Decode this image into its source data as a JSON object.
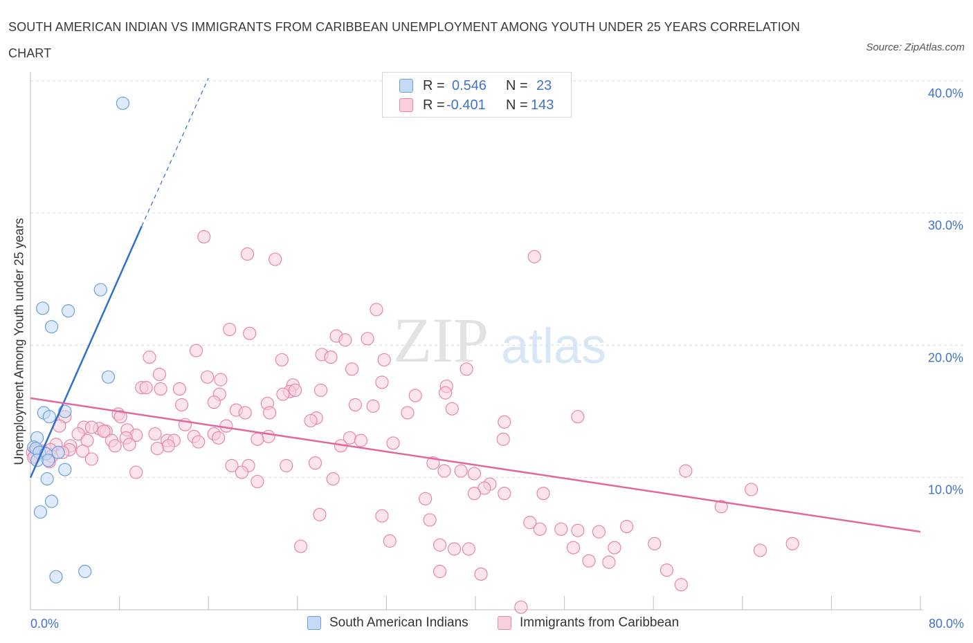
{
  "header": {
    "title": "SOUTH AMERICAN INDIAN VS IMMIGRANTS FROM CARIBBEAN UNEMPLOYMENT AMONG YOUTH UNDER 25 YEARS CORRELATION CHART",
    "source": "Source: ZipAtlas.com"
  },
  "colors": {
    "blue": "#6a9fe0",
    "blue_fill": "#c5daf6",
    "blue_line": "#2d6fcc",
    "pink": "#e985a8",
    "pink_fill": "#f8cddc",
    "pink_line": "#e0689a",
    "axis_text": "#3f73c9",
    "grid": "#d9d9d9"
  },
  "legend": {
    "r_label": "R =",
    "n_label": "N =",
    "blue_r": "0.546",
    "blue_n": "23",
    "pink_r": "-0.401",
    "pink_n": "143"
  },
  "watermark": {
    "zip": "ZIP",
    "atlas": "atlas"
  },
  "chart_data": {
    "type": "scatter",
    "title": "SOUTH AMERICAN INDIAN VS IMMIGRANTS FROM CARIBBEAN UNEMPLOYMENT AMONG YOUTH UNDER 25 YEARS CORRELATION CHART",
    "xlabel": "",
    "ylabel": "Unemployment Among Youth under 25 years",
    "xlim": [
      0,
      80
    ],
    "ylim": [
      0,
      40
    ],
    "x_tick_labels": [
      "0.0%",
      "80.0%"
    ],
    "y_ticks": [
      10,
      20,
      30,
      40
    ],
    "y_tick_labels": [
      "10.0%",
      "20.0%",
      "30.0%",
      "40.0%"
    ],
    "grid": true,
    "legend_position": "top-center",
    "series": [
      {
        "name": "South American Indians",
        "color": "#6a9fe0",
        "r": 0.546,
        "n": 23,
        "trend": {
          "x": [
            0,
            10
          ],
          "y": [
            10.0,
            29.0
          ],
          "dashed_to": [
            16,
            40.2
          ]
        },
        "points": [
          [
            8.3,
            38.3
          ],
          [
            6.3,
            24.2
          ],
          [
            1.1,
            22.8
          ],
          [
            3.4,
            22.6
          ],
          [
            1.9,
            21.4
          ],
          [
            7.0,
            17.6
          ],
          [
            1.2,
            14.9
          ],
          [
            3.1,
            15.0
          ],
          [
            1.7,
            14.6
          ],
          [
            0.6,
            13.0
          ],
          [
            0.3,
            12.3
          ],
          [
            0.5,
            12.2
          ],
          [
            0.8,
            11.9
          ],
          [
            1.4,
            11.8
          ],
          [
            2.5,
            11.9
          ],
          [
            0.6,
            11.3
          ],
          [
            1.6,
            11.3
          ],
          [
            3.1,
            10.6
          ],
          [
            1.5,
            9.9
          ],
          [
            1.9,
            8.2
          ],
          [
            0.9,
            7.4
          ],
          [
            4.9,
            2.9
          ],
          [
            2.3,
            2.5
          ]
        ]
      },
      {
        "name": "Immigrants from Caribbean",
        "color": "#e985a8",
        "r": -0.401,
        "n": 143,
        "trend": {
          "x": [
            0,
            80
          ],
          "y": [
            16.0,
            5.9
          ]
        },
        "points": [
          [
            15.6,
            28.2
          ],
          [
            19.5,
            26.9
          ],
          [
            22.0,
            26.5
          ],
          [
            45.3,
            26.7
          ],
          [
            31.1,
            22.7
          ],
          [
            17.9,
            21.2
          ],
          [
            19.7,
            20.9
          ],
          [
            27.5,
            20.7
          ],
          [
            28.3,
            20.4
          ],
          [
            30.3,
            20.5
          ],
          [
            14.9,
            19.6
          ],
          [
            26.2,
            19.3
          ],
          [
            27.0,
            19.1
          ],
          [
            10.7,
            19.1
          ],
          [
            22.6,
            18.9
          ],
          [
            31.8,
            18.9
          ],
          [
            28.9,
            18.2
          ],
          [
            39.2,
            18.2
          ],
          [
            11.6,
            17.8
          ],
          [
            15.9,
            17.6
          ],
          [
            17.1,
            17.4
          ],
          [
            31.6,
            17.2
          ],
          [
            23.6,
            17.0
          ],
          [
            10.0,
            16.8
          ],
          [
            10.4,
            16.8
          ],
          [
            11.7,
            16.7
          ],
          [
            13.4,
            16.7
          ],
          [
            26.1,
            16.6
          ],
          [
            23.3,
            16.5
          ],
          [
            23.8,
            16.6
          ],
          [
            22.7,
            16.3
          ],
          [
            17.0,
            16.3
          ],
          [
            37.4,
            16.9
          ],
          [
            37.3,
            16.4
          ],
          [
            34.6,
            16.2
          ],
          [
            16.5,
            15.7
          ],
          [
            21.3,
            15.6
          ],
          [
            13.6,
            15.5
          ],
          [
            29.2,
            15.5
          ],
          [
            30.8,
            15.4
          ],
          [
            37.9,
            15.2
          ],
          [
            18.5,
            15.1
          ],
          [
            19.3,
            14.9
          ],
          [
            21.5,
            14.9
          ],
          [
            33.9,
            14.9
          ],
          [
            7.9,
            14.8
          ],
          [
            8.1,
            14.6
          ],
          [
            49.2,
            14.6
          ],
          [
            3.1,
            14.6
          ],
          [
            25.7,
            14.5
          ],
          [
            25.2,
            14.3
          ],
          [
            42.6,
            14.2
          ],
          [
            13.9,
            14.0
          ],
          [
            17.6,
            13.9
          ],
          [
            4.8,
            13.8
          ],
          [
            6.2,
            13.7
          ],
          [
            5.5,
            13.8
          ],
          [
            2.6,
            13.9
          ],
          [
            6.8,
            13.5
          ],
          [
            8.7,
            13.6
          ],
          [
            6.6,
            13.5
          ],
          [
            16.5,
            13.3
          ],
          [
            4.3,
            13.3
          ],
          [
            9.5,
            13.2
          ],
          [
            11.2,
            13.3
          ],
          [
            14.7,
            13.1
          ],
          [
            16.9,
            13.0
          ],
          [
            21.4,
            13.1
          ],
          [
            28.7,
            13.0
          ],
          [
            7.3,
            12.8
          ],
          [
            20.4,
            12.9
          ],
          [
            29.7,
            12.8
          ],
          [
            8.6,
            13.0
          ],
          [
            5.1,
            12.8
          ],
          [
            12.3,
            12.8
          ],
          [
            12.9,
            12.8
          ],
          [
            15.1,
            12.7
          ],
          [
            32.6,
            12.6
          ],
          [
            42.5,
            12.9
          ],
          [
            8.9,
            12.5
          ],
          [
            2.3,
            12.5
          ],
          [
            3.6,
            12.4
          ],
          [
            7.6,
            12.4
          ],
          [
            12.4,
            12.4
          ],
          [
            27.9,
            12.4
          ],
          [
            11.4,
            12.2
          ],
          [
            3.5,
            12.1
          ],
          [
            0.5,
            12.0
          ],
          [
            1.0,
            12.0
          ],
          [
            1.8,
            12.1
          ],
          [
            0.2,
            11.9
          ],
          [
            2.9,
            11.9
          ],
          [
            4.7,
            12.0
          ],
          [
            0.6,
            11.8
          ],
          [
            1.2,
            11.9
          ],
          [
            0.4,
            11.6
          ],
          [
            1.9,
            11.6
          ],
          [
            0.3,
            11.5
          ],
          [
            1.7,
            11.2
          ],
          [
            5.5,
            11.4
          ],
          [
            36.2,
            11.1
          ],
          [
            25.6,
            11.1
          ],
          [
            19.6,
            10.9
          ],
          [
            23.0,
            10.9
          ],
          [
            18.1,
            10.9
          ],
          [
            38.7,
            10.5
          ],
          [
            19.0,
            10.4
          ],
          [
            37.2,
            10.5
          ],
          [
            39.9,
            10.3
          ],
          [
            58.9,
            10.5
          ],
          [
            9.5,
            10.4
          ],
          [
            27.2,
            9.9
          ],
          [
            20.4,
            9.7
          ],
          [
            41.3,
            9.5
          ],
          [
            40.8,
            9.2
          ],
          [
            46.1,
            8.8
          ],
          [
            64.8,
            9.1
          ],
          [
            39.9,
            8.8
          ],
          [
            42.6,
            8.8
          ],
          [
            35.5,
            8.4
          ],
          [
            62.1,
            7.8
          ],
          [
            26.0,
            7.2
          ],
          [
            31.6,
            7.1
          ],
          [
            44.9,
            6.6
          ],
          [
            35.9,
            6.8
          ],
          [
            47.7,
            6.1
          ],
          [
            49.2,
            6.0
          ],
          [
            51.1,
            5.9
          ],
          [
            53.6,
            6.3
          ],
          [
            45.8,
            6.1
          ],
          [
            32.3,
            5.2
          ],
          [
            36.8,
            4.9
          ],
          [
            24.3,
            4.8
          ],
          [
            38.1,
            4.6
          ],
          [
            39.4,
            4.6
          ],
          [
            48.8,
            4.7
          ],
          [
            52.5,
            4.7
          ],
          [
            56.1,
            5.0
          ],
          [
            65.6,
            4.5
          ],
          [
            68.5,
            5.0
          ],
          [
            36.8,
            2.9
          ],
          [
            40.5,
            2.7
          ],
          [
            52.0,
            3.6
          ],
          [
            50.2,
            3.7
          ],
          [
            57.2,
            3.0
          ],
          [
            58.5,
            1.9
          ],
          [
            44.1,
            0.2
          ]
        ]
      }
    ]
  }
}
